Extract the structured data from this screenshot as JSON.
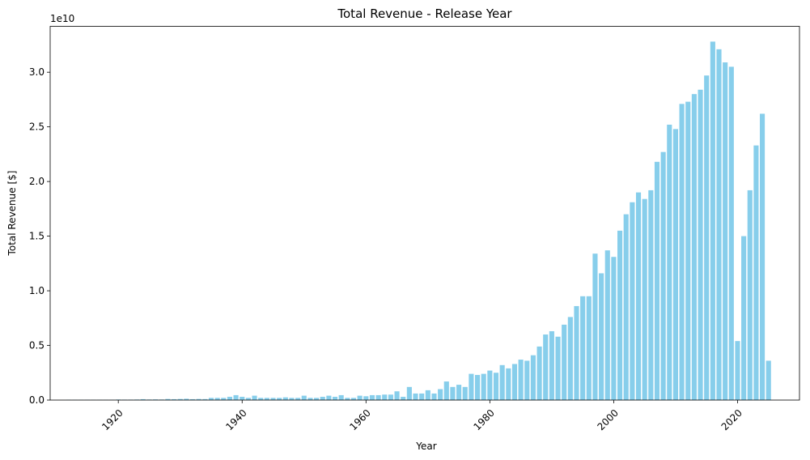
{
  "chart_data": {
    "type": "bar",
    "title": "Total Revenue - Release Year",
    "xlabel": "Year",
    "ylabel": "Total Revenue [$]",
    "y_offset_label": "1e10",
    "y_multiplier": 10000000000,
    "bar_color": "#87CEEB",
    "grid": false,
    "xlim": [
      1909,
      2030
    ],
    "ylim": [
      0,
      3.42
    ],
    "xticks": [
      1920,
      1940,
      1960,
      1980,
      2000,
      2020
    ],
    "xtick_rotation": 45,
    "yticks": [
      "0.0",
      "0.5",
      "1.0",
      "1.5",
      "2.0",
      "2.5",
      "3.0"
    ],
    "x": [
      1912,
      1913,
      1914,
      1915,
      1916,
      1917,
      1918,
      1919,
      1920,
      1921,
      1922,
      1923,
      1924,
      1925,
      1926,
      1927,
      1928,
      1929,
      1930,
      1931,
      1932,
      1933,
      1934,
      1935,
      1936,
      1937,
      1938,
      1939,
      1940,
      1941,
      1942,
      1943,
      1944,
      1945,
      1946,
      1947,
      1948,
      1949,
      1950,
      1951,
      1952,
      1953,
      1954,
      1955,
      1956,
      1957,
      1958,
      1959,
      1960,
      1961,
      1962,
      1963,
      1964,
      1965,
      1966,
      1967,
      1968,
      1969,
      1970,
      1971,
      1972,
      1973,
      1974,
      1975,
      1976,
      1977,
      1978,
      1979,
      1980,
      1981,
      1982,
      1983,
      1984,
      1985,
      1986,
      1987,
      1988,
      1989,
      1990,
      1991,
      1992,
      1993,
      1994,
      1995,
      1996,
      1997,
      1998,
      1999,
      2000,
      2001,
      2002,
      2003,
      2004,
      2005,
      2006,
      2007,
      2008,
      2009,
      2010,
      2011,
      2012,
      2013,
      2014,
      2015,
      2016,
      2017,
      2018,
      2019,
      2020,
      2021,
      2022,
      2023,
      2024,
      2025
    ],
    "values": [
      0.002,
      0.002,
      0.002,
      0.003,
      0.002,
      0.002,
      0.002,
      0.003,
      0.005,
      0.004,
      0.004,
      0.005,
      0.008,
      0.005,
      0.006,
      0.005,
      0.01,
      0.008,
      0.01,
      0.012,
      0.008,
      0.01,
      0.009,
      0.02,
      0.02,
      0.02,
      0.03,
      0.045,
      0.03,
      0.02,
      0.04,
      0.02,
      0.02,
      0.02,
      0.02,
      0.025,
      0.02,
      0.02,
      0.04,
      0.02,
      0.02,
      0.03,
      0.04,
      0.03,
      0.045,
      0.02,
      0.02,
      0.04,
      0.035,
      0.045,
      0.045,
      0.05,
      0.05,
      0.08,
      0.03,
      0.12,
      0.06,
      0.06,
      0.09,
      0.06,
      0.1,
      0.17,
      0.12,
      0.14,
      0.12,
      0.24,
      0.23,
      0.24,
      0.27,
      0.25,
      0.32,
      0.29,
      0.33,
      0.37,
      0.36,
      0.41,
      0.49,
      0.6,
      0.63,
      0.58,
      0.69,
      0.76,
      0.86,
      0.95,
      0.95,
      1.34,
      1.16,
      1.37,
      1.31,
      1.55,
      1.7,
      1.81,
      1.9,
      1.84,
      1.92,
      2.18,
      2.27,
      2.52,
      2.48,
      2.71,
      2.73,
      2.8,
      2.84,
      2.97,
      3.28,
      3.21,
      3.09,
      3.05,
      0.54,
      1.5,
      1.92,
      2.33,
      2.62,
      0.36
    ]
  }
}
